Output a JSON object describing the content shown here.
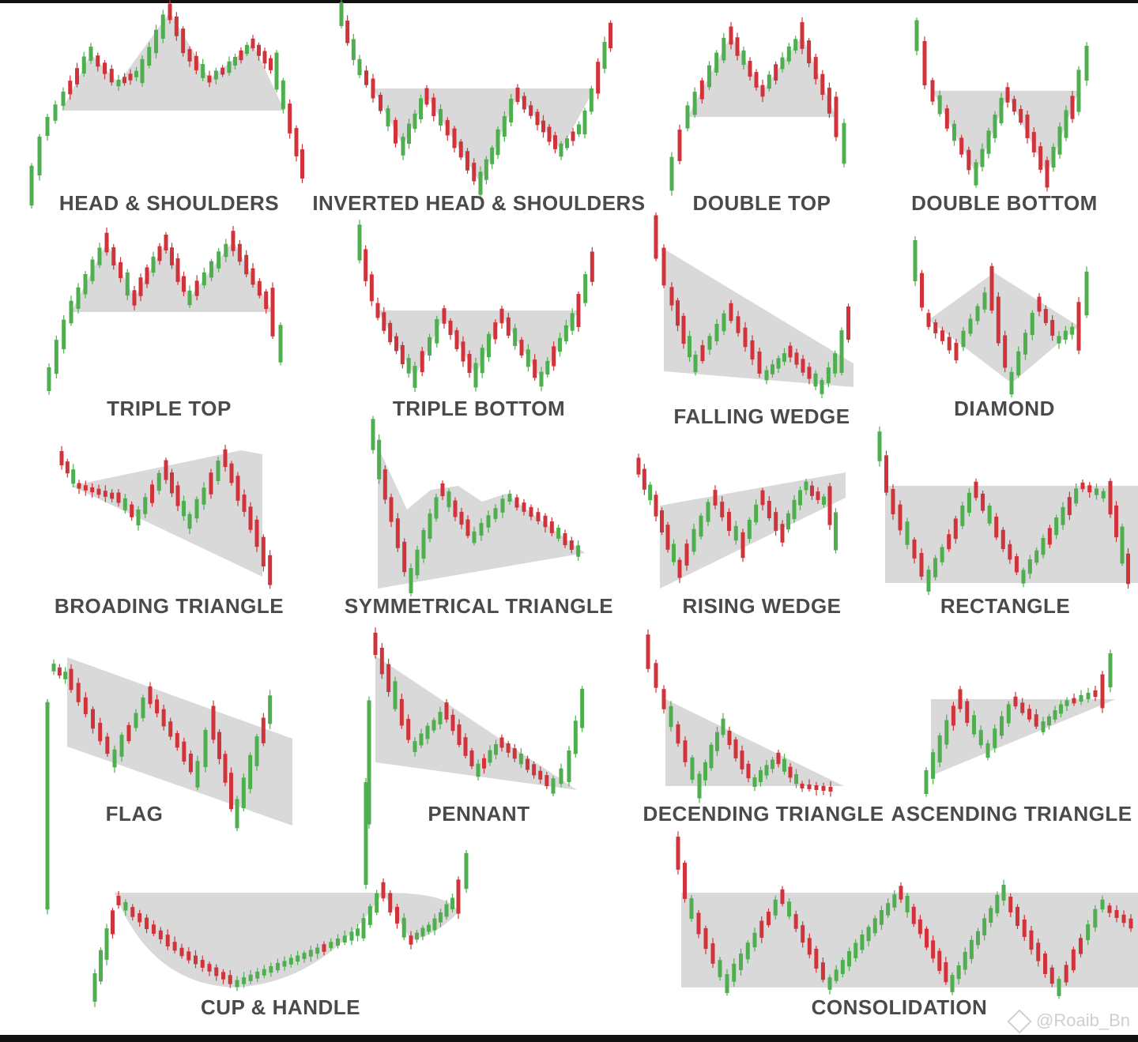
{
  "patterns": [
    {
      "label": "HEAD & SHOULDERS"
    },
    {
      "label": "INVERTED HEAD & SHOULDERS"
    },
    {
      "label": "DOUBLE TOP"
    },
    {
      "label": "DOUBLE BOTTOM"
    },
    {
      "label": "TRIPLE TOP"
    },
    {
      "label": "TRIPLE BOTTOM"
    },
    {
      "label": "FALLING WEDGE"
    },
    {
      "label": "DIAMOND"
    },
    {
      "label": "BROADING TRIANGLE"
    },
    {
      "label": "SYMMETRICAL TRIANGLE"
    },
    {
      "label": "RISING WEDGE"
    },
    {
      "label": "RECTANGLE"
    },
    {
      "label": "FLAG"
    },
    {
      "label": "PENNANT"
    },
    {
      "label": "DECENDING TRIANGLE"
    },
    {
      "label": "ASCENDING TRIANGLE"
    },
    {
      "label": "CUP & HANDLE"
    },
    {
      "label": "CONSOLIDATION"
    }
  ],
  "watermark": {
    "text": "@Roaib_Bn"
  },
  "colors": {
    "bullish": "#4fae4f",
    "bearish": "#d0343a",
    "shaded_area": "#d9d9d9",
    "label": "#4a4a4a"
  }
}
